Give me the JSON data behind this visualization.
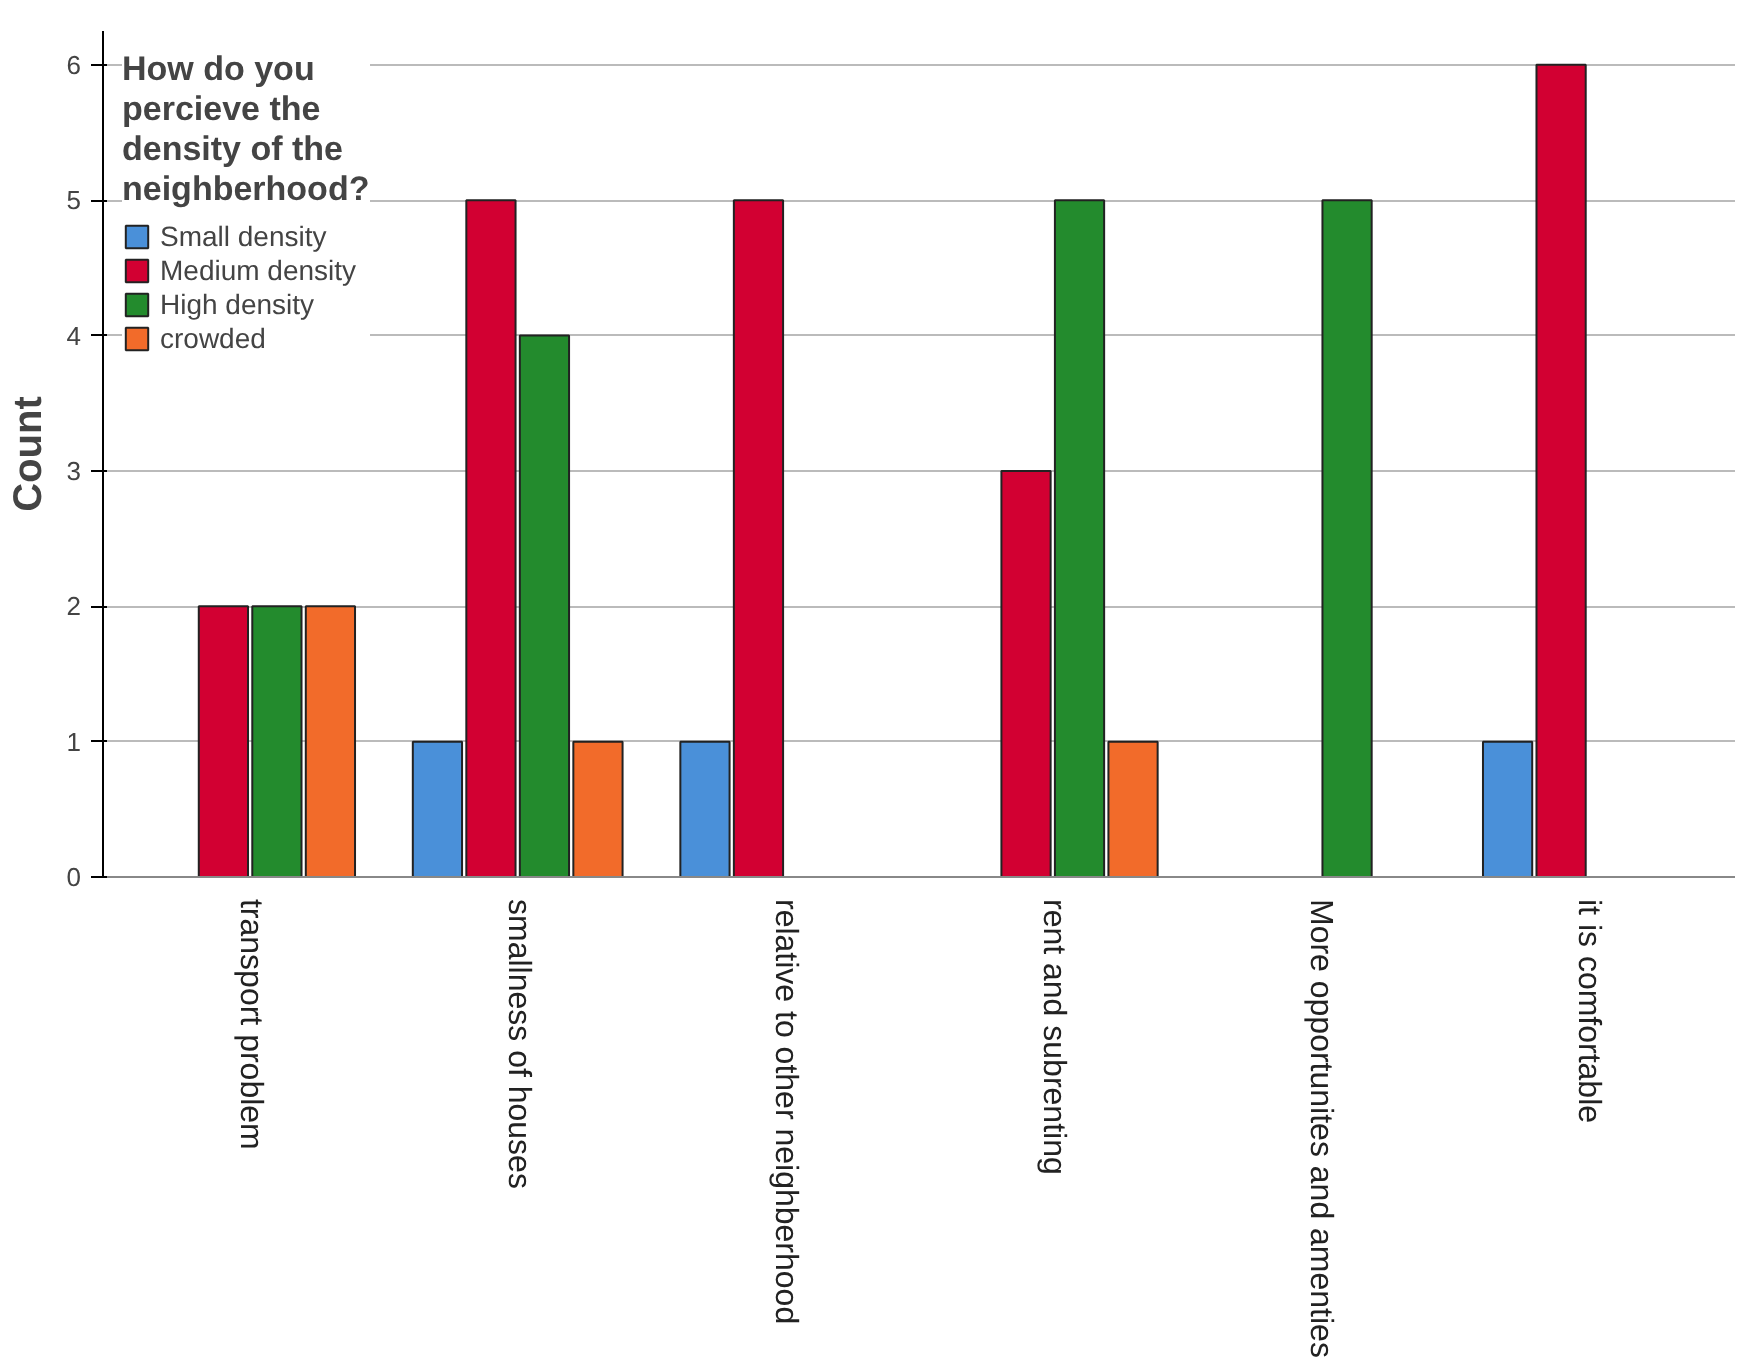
{
  "chart_data": {
    "type": "bar",
    "ylabel": "Count",
    "legend_title": "How do you percieve the density of the neighberhood?",
    "categories": [
      "transport problem",
      "smallness of houses",
      "relative to other neighberhood",
      "rent and subrenting",
      "More opportunites and amenties",
      "it is comfortable"
    ],
    "series": [
      {
        "name": "Small density",
        "color": "#4a90d9",
        "values": [
          null,
          1,
          1,
          null,
          null,
          1
        ]
      },
      {
        "name": "Medium density",
        "color": "#d20032",
        "values": [
          2,
          5,
          5,
          3,
          null,
          6
        ]
      },
      {
        "name": "High density",
        "color": "#238b2d",
        "values": [
          2,
          4,
          null,
          5,
          5,
          null
        ]
      },
      {
        "name": "crowded",
        "color": "#f26b2a",
        "values": [
          2,
          1,
          null,
          1,
          null,
          null
        ]
      }
    ],
    "ylim": [
      0,
      6.25
    ],
    "yticks": [
      0,
      1,
      2,
      3,
      4,
      5,
      6
    ],
    "grid": "y",
    "legend": "top left"
  }
}
